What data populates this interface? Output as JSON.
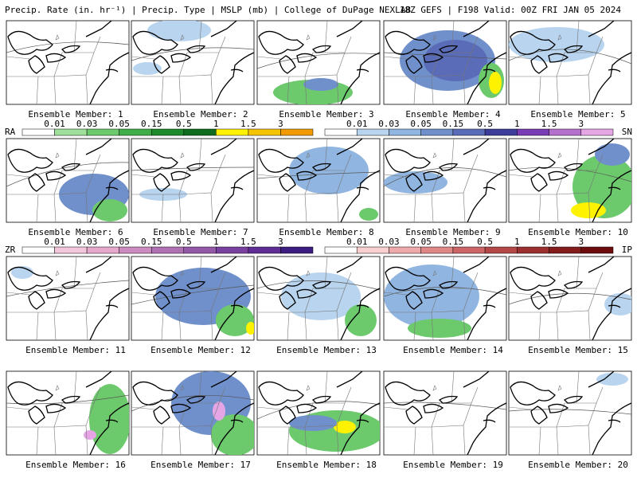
{
  "header": {
    "left": "Precip. Rate (in. hr⁻¹) | Precip. Type | MSLP (mb) | College of DuPage NEXLAB",
    "right": "18Z GEFS | F198 Valid: 00Z FRI JAN 05 2024"
  },
  "panels": [
    {
      "label": "Ensemble Member: 1"
    },
    {
      "label": "Ensemble Member: 2"
    },
    {
      "label": "Ensemble Member: 3"
    },
    {
      "label": "Ensemble Member: 4"
    },
    {
      "label": "Ensemble Member: 5"
    },
    {
      "label": "Ensemble Member: 6"
    },
    {
      "label": "Ensemble Member: 7"
    },
    {
      "label": "Ensemble Member: 8"
    },
    {
      "label": "Ensemble Member: 9"
    },
    {
      "label": "Ensemble Member: 10"
    },
    {
      "label": "Ensemble Member: 11"
    },
    {
      "label": "Ensemble Member: 12"
    },
    {
      "label": "Ensemble Member: 13"
    },
    {
      "label": "Ensemble Member: 14"
    },
    {
      "label": "Ensemble Member: 15"
    },
    {
      "label": "Ensemble Member: 16"
    },
    {
      "label": "Ensemble Member: 17"
    },
    {
      "label": "Ensemble Member: 18"
    },
    {
      "label": "Ensemble Member: 19"
    },
    {
      "label": "Ensemble Member: 20"
    }
  ],
  "legends": [
    {
      "type": "RA",
      "ticks": [
        "0.01",
        "0.03",
        "0.05",
        "0.15",
        "0.5",
        "1",
        "1.5",
        "3"
      ],
      "colors": [
        "#ffffff",
        "#9ee09a",
        "#6cc96c",
        "#3fae48",
        "#1d8a2c",
        "#0f6b1e",
        "#fff200",
        "#f5c400",
        "#f29a00"
      ]
    },
    {
      "type": "SN",
      "ticks": [
        "0.01",
        "0.03",
        "0.05",
        "0.15",
        "0.5",
        "1",
        "1.5",
        "3"
      ],
      "colors": [
        "#ffffff",
        "#b8d4ee",
        "#90b5e0",
        "#7090cc",
        "#5a6cb8",
        "#3c3c9a",
        "#7a3cb4",
        "#b470cc",
        "#e6a6e6"
      ]
    },
    {
      "type": "ZR",
      "ticks": [
        "0.01",
        "0.03",
        "0.05",
        "0.15",
        "0.5",
        "1",
        "1.5",
        "3"
      ],
      "colors": [
        "#ffffff",
        "#f4c6dc",
        "#e6a8cc",
        "#cc8cc0",
        "#b070b4",
        "#9458a8",
        "#7a40a0",
        "#5e2c94",
        "#3c1c80"
      ]
    },
    {
      "type": "IP",
      "ticks": [
        "0.01",
        "0.03",
        "0.05",
        "0.15",
        "0.5",
        "1",
        "1.5",
        "3"
      ],
      "colors": [
        "#ffffff",
        "#f8d0d0",
        "#eeaaaa",
        "#e08888",
        "#cc6666",
        "#b44848",
        "#9c3030",
        "#841c1c",
        "#6c0c0c"
      ]
    }
  ]
}
